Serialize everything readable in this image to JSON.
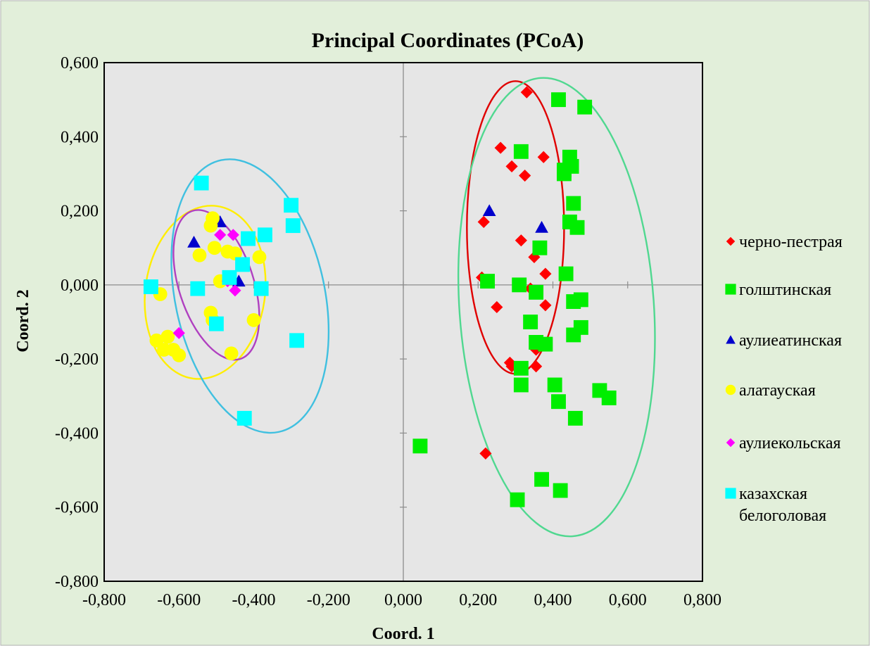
{
  "chart_data": {
    "type": "scatter",
    "title": "Principal Coordinates (PCoA)",
    "xlabel": "Coord. 1",
    "ylabel": "Coord. 2",
    "xlim": [
      -0.8,
      0.8
    ],
    "ylim": [
      -0.8,
      0.6
    ],
    "xticks": [
      -0.8,
      -0.6,
      -0.4,
      -0.2,
      0.0,
      0.2,
      0.4,
      0.6,
      0.8
    ],
    "yticks": [
      -0.8,
      -0.6,
      -0.4,
      -0.2,
      0.0,
      0.2,
      0.4,
      0.6
    ],
    "xtick_labels": [
      "-0,800",
      "-0,600",
      "-0,400",
      "-0,200",
      "0,000",
      "0,200",
      "0,400",
      "0,600",
      "0,800"
    ],
    "ytick_labels": [
      "-0,800",
      "-0,600",
      "-0,400",
      "-0,200",
      "0,000",
      "0,200",
      "0,400",
      "0,600"
    ],
    "grid": false,
    "legend_position": "right",
    "colors": {
      "chart_area": "#e2efda",
      "plot_area": "#e6e6e6",
      "border": "#000000",
      "axis_lines": "#8c8c8c"
    },
    "series": [
      {
        "name": "черно-пестрая",
        "marker": "diamond",
        "color": "#ff0000",
        "points": [
          [
            0.33,
            0.52
          ],
          [
            0.26,
            0.37
          ],
          [
            0.375,
            0.345
          ],
          [
            0.29,
            0.32
          ],
          [
            0.325,
            0.295
          ],
          [
            0.215,
            0.17
          ],
          [
            0.315,
            0.12
          ],
          [
            0.35,
            0.075
          ],
          [
            0.38,
            0.03
          ],
          [
            0.21,
            0.02
          ],
          [
            0.34,
            -0.01
          ],
          [
            0.25,
            -0.06
          ],
          [
            0.38,
            -0.055
          ],
          [
            0.355,
            -0.175
          ],
          [
            0.285,
            -0.21
          ],
          [
            0.29,
            -0.22
          ],
          [
            0.355,
            -0.22
          ],
          [
            0.22,
            -0.455
          ]
        ]
      },
      {
        "name": "голштинская",
        "marker": "square",
        "color": "#00ee00",
        "points": [
          [
            0.415,
            0.5
          ],
          [
            0.485,
            0.48
          ],
          [
            0.315,
            0.36
          ],
          [
            0.445,
            0.345
          ],
          [
            0.45,
            0.32
          ],
          [
            0.43,
            0.31
          ],
          [
            0.43,
            0.3
          ],
          [
            0.455,
            0.22
          ],
          [
            0.445,
            0.17
          ],
          [
            0.465,
            0.155
          ],
          [
            0.365,
            0.1
          ],
          [
            0.435,
            0.03
          ],
          [
            0.225,
            0.01
          ],
          [
            0.31,
            0.0
          ],
          [
            0.355,
            -0.02
          ],
          [
            0.475,
            -0.04
          ],
          [
            0.455,
            -0.045
          ],
          [
            0.34,
            -0.1
          ],
          [
            0.475,
            -0.115
          ],
          [
            0.455,
            -0.135
          ],
          [
            0.355,
            -0.155
          ],
          [
            0.38,
            -0.16
          ],
          [
            0.315,
            -0.225
          ],
          [
            0.315,
            -0.27
          ],
          [
            0.405,
            -0.27
          ],
          [
            0.415,
            -0.315
          ],
          [
            0.525,
            -0.285
          ],
          [
            0.55,
            -0.305
          ],
          [
            0.46,
            -0.36
          ],
          [
            0.045,
            -0.435
          ],
          [
            0.37,
            -0.525
          ],
          [
            0.42,
            -0.555
          ],
          [
            0.305,
            -0.58
          ]
        ]
      },
      {
        "name": "аулиеатинская",
        "marker": "triangle",
        "color": "#0000cc",
        "points": [
          [
            0.23,
            0.2
          ],
          [
            0.37,
            0.155
          ],
          [
            -0.56,
            0.115
          ],
          [
            -0.49,
            0.17
          ],
          [
            -0.44,
            0.01
          ]
        ]
      },
      {
        "name": "алатауская",
        "marker": "circle",
        "color": "#ffff00",
        "points": [
          [
            -0.51,
            0.18
          ],
          [
            -0.515,
            0.16
          ],
          [
            -0.505,
            0.1
          ],
          [
            -0.47,
            0.09
          ],
          [
            -0.45,
            0.085
          ],
          [
            -0.545,
            0.08
          ],
          [
            -0.385,
            0.075
          ],
          [
            -0.49,
            0.01
          ],
          [
            -0.65,
            -0.025
          ],
          [
            -0.515,
            -0.075
          ],
          [
            -0.51,
            -0.095
          ],
          [
            -0.4,
            -0.095
          ],
          [
            -0.66,
            -0.15
          ],
          [
            -0.63,
            -0.14
          ],
          [
            -0.64,
            -0.175
          ],
          [
            -0.615,
            -0.175
          ],
          [
            -0.6,
            -0.19
          ],
          [
            -0.46,
            -0.185
          ]
        ]
      },
      {
        "name": "аулиекольская",
        "marker": "diamond",
        "color": "#ff00ff",
        "points": [
          [
            -0.49,
            0.135
          ],
          [
            -0.455,
            0.135
          ],
          [
            -0.47,
            0.01
          ],
          [
            -0.45,
            -0.015
          ],
          [
            -0.6,
            -0.13
          ]
        ]
      },
      {
        "name": "казахская белоголовая",
        "legend_lines": [
          "казахская",
          "белоголовая"
        ],
        "marker": "square",
        "color": "#00ffff",
        "points": [
          [
            -0.54,
            0.275
          ],
          [
            -0.3,
            0.215
          ],
          [
            -0.295,
            0.16
          ],
          [
            -0.37,
            0.135
          ],
          [
            -0.415,
            0.125
          ],
          [
            -0.43,
            0.055
          ],
          [
            -0.465,
            0.02
          ],
          [
            -0.38,
            -0.01
          ],
          [
            -0.55,
            -0.01
          ],
          [
            -0.675,
            -0.005
          ],
          [
            -0.5,
            -0.105
          ],
          [
            -0.285,
            -0.15
          ],
          [
            -0.425,
            -0.36
          ]
        ]
      }
    ],
    "ellipses": [
      {
        "series": "черно-пестрая",
        "color": "#e00000",
        "cx": 0.3,
        "cy": 0.155,
        "rx": 0.13,
        "ry": 0.395,
        "tilt_deg": 0
      },
      {
        "series": "голштинская",
        "color": "#50d890",
        "cx": 0.41,
        "cy": -0.06,
        "rx": 0.26,
        "ry": 0.62,
        "tilt_deg": -4
      },
      {
        "series": "алатауская",
        "color": "#ffee00",
        "cx": -0.53,
        "cy": -0.02,
        "rx": 0.16,
        "ry": 0.235,
        "tilt_deg": 8
      },
      {
        "series": "аулиекольская",
        "color": "#b040c0",
        "cx": -0.5,
        "cy": 0.0,
        "rx": 0.1,
        "ry": 0.21,
        "tilt_deg": -18
      },
      {
        "series": "казахская белоголовая",
        "color": "#40c0e0",
        "cx": -0.41,
        "cy": -0.03,
        "rx": 0.2,
        "ry": 0.375,
        "tilt_deg": -12
      }
    ]
  }
}
